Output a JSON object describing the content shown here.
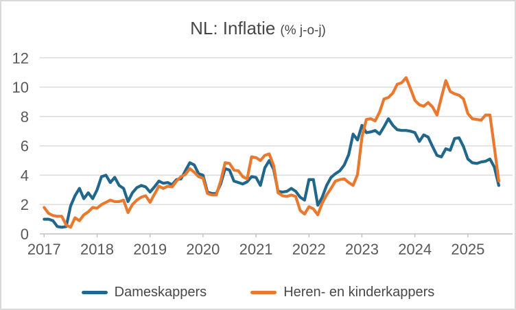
{
  "header": {
    "title": "NL: Inflatie",
    "subtitle": "(% j-o-j)"
  },
  "colors": {
    "background": "#ffffff",
    "frame_border": "#d9d9d9",
    "gridline": "#d9d9d9",
    "axis": "#bfbfbf",
    "tick_text": "#595959",
    "title_text": "#474747",
    "series_dameskappers": "#21678c",
    "series_herenkappers": "#e8792f"
  },
  "chart_data": {
    "type": "line",
    "title": "NL: Inflatie (% j-o-j)",
    "xlabel": "",
    "ylabel": "",
    "frequency": "monthly",
    "x_start": "2017-01",
    "x_end": "2025-08",
    "ylim": [
      0,
      12
    ],
    "y_ticks": [
      0,
      2,
      4,
      6,
      8,
      10,
      12
    ],
    "x_tick_labels": [
      "2017",
      "2018",
      "2019",
      "2020",
      "2021",
      "2022",
      "2023",
      "2024",
      "2025"
    ],
    "grid": "horizontal",
    "legend_position": "bottom",
    "months": [
      "2017-01",
      "2017-02",
      "2017-03",
      "2017-04",
      "2017-05",
      "2017-06",
      "2017-07",
      "2017-08",
      "2017-09",
      "2017-10",
      "2017-11",
      "2017-12",
      "2018-01",
      "2018-02",
      "2018-03",
      "2018-04",
      "2018-05",
      "2018-06",
      "2018-07",
      "2018-08",
      "2018-09",
      "2018-10",
      "2018-11",
      "2018-12",
      "2019-01",
      "2019-02",
      "2019-03",
      "2019-04",
      "2019-05",
      "2019-06",
      "2019-07",
      "2019-08",
      "2019-09",
      "2019-10",
      "2019-11",
      "2019-12",
      "2020-01",
      "2020-02",
      "2020-03",
      "2020-04",
      "2020-05",
      "2020-06",
      "2020-07",
      "2020-08",
      "2020-09",
      "2020-10",
      "2020-11",
      "2020-12",
      "2021-01",
      "2021-02",
      "2021-03",
      "2021-04",
      "2021-05",
      "2021-06",
      "2021-07",
      "2021-08",
      "2021-09",
      "2021-10",
      "2021-11",
      "2021-12",
      "2022-01",
      "2022-02",
      "2022-03",
      "2022-04",
      "2022-05",
      "2022-06",
      "2022-07",
      "2022-08",
      "2022-09",
      "2022-10",
      "2022-11",
      "2022-12",
      "2023-01",
      "2023-02",
      "2023-03",
      "2023-04",
      "2023-05",
      "2023-06",
      "2023-07",
      "2023-08",
      "2023-09",
      "2023-10",
      "2023-11",
      "2023-12",
      "2024-01",
      "2024-02",
      "2024-03",
      "2024-04",
      "2024-05",
      "2024-06",
      "2024-07",
      "2024-08",
      "2024-09",
      "2024-10",
      "2024-11",
      "2024-12",
      "2025-01",
      "2025-02",
      "2025-03",
      "2025-04",
      "2025-05",
      "2025-06",
      "2025-07",
      "2025-08"
    ],
    "series": [
      {
        "name": "Dameskappers",
        "color": "#21678c",
        "values": [
          1.0,
          1.0,
          0.9,
          0.5,
          0.45,
          0.5,
          1.9,
          2.6,
          3.1,
          2.4,
          2.8,
          2.4,
          3.0,
          3.9,
          4.0,
          3.5,
          3.85,
          3.3,
          3.1,
          2.2,
          2.8,
          3.15,
          3.3,
          3.2,
          2.85,
          3.2,
          3.6,
          3.45,
          3.5,
          3.35,
          3.7,
          3.75,
          4.3,
          4.85,
          4.7,
          4.1,
          4.0,
          2.85,
          2.75,
          2.75,
          3.4,
          4.45,
          4.35,
          3.6,
          3.5,
          3.4,
          3.55,
          3.9,
          3.85,
          3.3,
          4.5,
          5.0,
          4.4,
          2.9,
          2.85,
          2.9,
          3.1,
          2.9,
          2.5,
          2.3,
          3.7,
          3.7,
          1.95,
          2.5,
          3.3,
          3.85,
          4.1,
          4.3,
          4.7,
          5.4,
          6.8,
          6.4,
          7.4,
          6.9,
          6.95,
          7.05,
          6.8,
          7.3,
          7.85,
          7.4,
          7.1,
          7.05,
          7.05,
          7.0,
          6.9,
          6.3,
          6.75,
          6.6,
          5.95,
          5.35,
          5.25,
          5.8,
          5.7,
          6.5,
          6.55,
          5.95,
          5.1,
          4.85,
          4.8,
          4.9,
          4.95,
          5.1,
          4.55,
          3.3
        ]
      },
      {
        "name": "Heren- en kinderkappers",
        "color": "#e8792f",
        "values": [
          1.8,
          1.4,
          1.25,
          1.2,
          1.2,
          0.6,
          0.45,
          1.1,
          0.9,
          1.3,
          1.5,
          1.8,
          1.75,
          2.0,
          2.15,
          2.3,
          2.2,
          2.2,
          2.3,
          1.45,
          2.0,
          2.3,
          2.5,
          2.6,
          2.15,
          2.7,
          3.25,
          3.1,
          3.25,
          3.2,
          3.6,
          3.9,
          4.05,
          4.45,
          4.2,
          3.9,
          3.8,
          2.75,
          2.65,
          2.65,
          3.6,
          4.85,
          4.8,
          4.35,
          4.3,
          3.9,
          3.75,
          5.25,
          5.2,
          5.0,
          5.35,
          5.45,
          4.65,
          2.8,
          2.6,
          2.55,
          2.65,
          2.55,
          1.6,
          1.35,
          1.85,
          1.7,
          1.3,
          2.1,
          2.65,
          3.1,
          3.6,
          3.7,
          3.75,
          3.5,
          3.3,
          4.05,
          6.6,
          7.8,
          7.85,
          7.7,
          8.3,
          9.2,
          9.3,
          9.6,
          10.2,
          10.3,
          10.65,
          9.9,
          9.1,
          8.8,
          8.7,
          8.95,
          8.65,
          8.1,
          9.3,
          10.45,
          9.7,
          9.55,
          9.45,
          9.2,
          8.2,
          7.85,
          7.8,
          7.75,
          8.1,
          8.1,
          5.9,
          3.6
        ]
      }
    ]
  }
}
